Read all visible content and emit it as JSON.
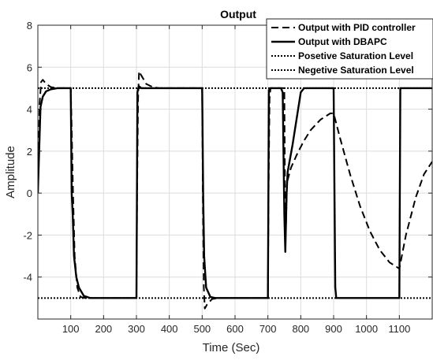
{
  "chart_data": {
    "type": "line",
    "title": "Output",
    "xlabel": "Time (Sec)",
    "ylabel": "Amplitude",
    "xlim": [
      0,
      1200
    ],
    "ylim": [
      -6,
      8
    ],
    "xticks": [
      100,
      200,
      300,
      400,
      500,
      600,
      700,
      800,
      900,
      1000,
      1100
    ],
    "yticks": [
      -4,
      -2,
      0,
      2,
      4,
      6,
      8
    ],
    "grid": true,
    "legend_position": "top-right",
    "series": [
      {
        "name": "Output with PID controller",
        "style": "dashed",
        "color": "#000000",
        "points": [
          [
            0,
            0
          ],
          [
            5,
            4.2
          ],
          [
            10,
            5.3
          ],
          [
            15,
            5.4
          ],
          [
            25,
            5.2
          ],
          [
            40,
            5.05
          ],
          [
            60,
            5.0
          ],
          [
            100,
            5.0
          ],
          [
            103,
            3.0
          ],
          [
            107,
            0.0
          ],
          [
            112,
            -3.0
          ],
          [
            120,
            -4.5
          ],
          [
            130,
            -4.95
          ],
          [
            145,
            -5.0
          ],
          [
            300,
            -5.0
          ],
          [
            302,
            0.0
          ],
          [
            305,
            4.5
          ],
          [
            308,
            5.8
          ],
          [
            315,
            5.6
          ],
          [
            330,
            5.2
          ],
          [
            350,
            5.05
          ],
          [
            370,
            5.0
          ],
          [
            500,
            5.0
          ],
          [
            502,
            0.0
          ],
          [
            505,
            -4.5
          ],
          [
            508,
            -5.5
          ],
          [
            515,
            -5.3
          ],
          [
            530,
            -5.05
          ],
          [
            550,
            -5.0
          ],
          [
            700,
            -5.0
          ],
          [
            702,
            0.0
          ],
          [
            705,
            4.5
          ],
          [
            708,
            5.0
          ],
          [
            750,
            5.0
          ],
          [
            752,
            0.0
          ],
          [
            755,
            -1.5
          ],
          [
            758,
            0.5
          ],
          [
            770,
            1.2
          ],
          [
            790,
            1.9
          ],
          [
            810,
            2.5
          ],
          [
            830,
            3.0
          ],
          [
            860,
            3.5
          ],
          [
            890,
            3.8
          ],
          [
            900,
            3.8
          ],
          [
            920,
            2.6
          ],
          [
            950,
            0.9
          ],
          [
            980,
            -0.6
          ],
          [
            1010,
            -1.8
          ],
          [
            1040,
            -2.7
          ],
          [
            1070,
            -3.3
          ],
          [
            1100,
            -3.6
          ],
          [
            1120,
            -2.0
          ],
          [
            1150,
            -0.2
          ],
          [
            1175,
            0.9
          ],
          [
            1200,
            1.5
          ]
        ]
      },
      {
        "name": "Output with DBAPC",
        "style": "solid",
        "color": "#000000",
        "points": [
          [
            0,
            0
          ],
          [
            8,
            4.1
          ],
          [
            15,
            4.6
          ],
          [
            25,
            4.85
          ],
          [
            40,
            4.95
          ],
          [
            60,
            5.0
          ],
          [
            100,
            5.0
          ],
          [
            103,
            0.0
          ],
          [
            106,
            -1.0
          ],
          [
            110,
            -3.0
          ],
          [
            117,
            -4.0
          ],
          [
            125,
            -4.5
          ],
          [
            140,
            -4.9
          ],
          [
            160,
            -5.0
          ],
          [
            300,
            -5.0
          ],
          [
            303,
            4.8
          ],
          [
            307,
            5.1
          ],
          [
            315,
            5.0
          ],
          [
            500,
            5.0
          ],
          [
            503,
            0.0
          ],
          [
            506,
            -3.0
          ],
          [
            512,
            -4.5
          ],
          [
            525,
            -4.95
          ],
          [
            540,
            -5.0
          ],
          [
            700,
            -5.0
          ],
          [
            703,
            4.9
          ],
          [
            707,
            5.0
          ],
          [
            740,
            5.0
          ],
          [
            745,
            4.8
          ],
          [
            750,
            -1.0
          ],
          [
            753,
            -2.8
          ],
          [
            757,
            0.0
          ],
          [
            760,
            1.0
          ],
          [
            775,
            2.3
          ],
          [
            790,
            3.8
          ],
          [
            800,
            4.8
          ],
          [
            810,
            5.0
          ],
          [
            900,
            5.0
          ],
          [
            905,
            -4.5
          ],
          [
            908,
            -5.0
          ],
          [
            1100,
            -5.0
          ],
          [
            1103,
            5.0
          ],
          [
            1200,
            5.0
          ]
        ]
      },
      {
        "name": "Posetive Saturation Level",
        "style": "dotted",
        "color": "#000000",
        "points": [
          [
            0,
            5
          ],
          [
            1200,
            5
          ]
        ]
      },
      {
        "name": "Negetive Saturation Level",
        "style": "dotted",
        "color": "#000000",
        "points": [
          [
            0,
            -5
          ],
          [
            1200,
            -5
          ]
        ]
      }
    ]
  }
}
